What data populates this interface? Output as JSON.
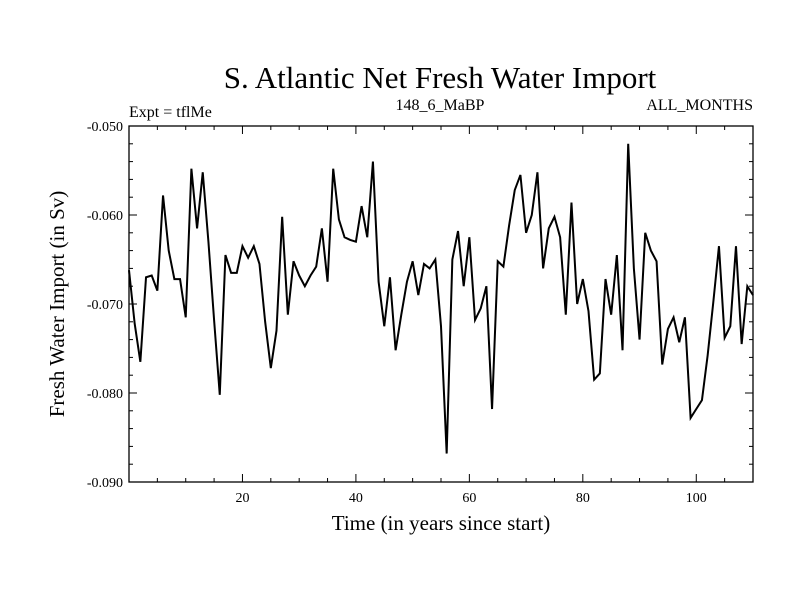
{
  "chart_data": {
    "type": "line",
    "title": "S. Atlantic Net Fresh Water Import",
    "subtitle_left": "Expt = tflMe",
    "subtitle_center": "148_6_MaBP",
    "subtitle_right": "ALL_MONTHS",
    "xlabel": "Time (in years since start)",
    "ylabel": "Fresh Water Import (in Sv)",
    "xlim": [
      0,
      110
    ],
    "ylim": [
      -0.09,
      -0.05
    ],
    "xticks": [
      20,
      40,
      60,
      80,
      100
    ],
    "xtick_labels": [
      "20",
      "40",
      "60",
      "80",
      "100"
    ],
    "yticks": [
      -0.09,
      -0.08,
      -0.07,
      -0.06,
      -0.05
    ],
    "ytick_labels": [
      "-0.090",
      "-0.080",
      "-0.070",
      "-0.060",
      "-0.050"
    ],
    "series": [
      {
        "name": "Net Fresh Water Import",
        "color": "#000000",
        "x": [
          0,
          1,
          2,
          3,
          4,
          5,
          6,
          7,
          8,
          9,
          10,
          11,
          12,
          13,
          14,
          15,
          16,
          17,
          18,
          19,
          20,
          21,
          22,
          23,
          24,
          25,
          26,
          27,
          28,
          29,
          30,
          31,
          32,
          33,
          34,
          35,
          36,
          37,
          38,
          39,
          40,
          41,
          42,
          43,
          44,
          45,
          46,
          47,
          48,
          49,
          50,
          51,
          52,
          53,
          54,
          55,
          56,
          57,
          58,
          59,
          60,
          61,
          62,
          63,
          64,
          65,
          66,
          67,
          68,
          69,
          70,
          71,
          72,
          73,
          74,
          75,
          76,
          77,
          78,
          79,
          80,
          81,
          82,
          83,
          84,
          85,
          86,
          87,
          88,
          89,
          90,
          91,
          92,
          93,
          94,
          95,
          96,
          97,
          98,
          99,
          100,
          101,
          102,
          103,
          104,
          105,
          106,
          107,
          108,
          109,
          110
        ],
        "values": [
          -0.0662,
          -0.0722,
          -0.0765,
          -0.067,
          -0.0668,
          -0.0685,
          -0.0578,
          -0.064,
          -0.0672,
          -0.0672,
          -0.0715,
          -0.0548,
          -0.0615,
          -0.0552,
          -0.063,
          -0.0718,
          -0.0802,
          -0.0645,
          -0.0665,
          -0.0665,
          -0.0635,
          -0.0648,
          -0.0635,
          -0.0655,
          -0.072,
          -0.0772,
          -0.073,
          -0.0602,
          -0.0712,
          -0.0652,
          -0.0668,
          -0.068,
          -0.0668,
          -0.0658,
          -0.0615,
          -0.0675,
          -0.0548,
          -0.0605,
          -0.0625,
          -0.0628,
          -0.063,
          -0.059,
          -0.0625,
          -0.054,
          -0.0675,
          -0.0725,
          -0.067,
          -0.0752,
          -0.0712,
          -0.0675,
          -0.0652,
          -0.069,
          -0.0655,
          -0.066,
          -0.065,
          -0.0725,
          -0.0868,
          -0.065,
          -0.0618,
          -0.068,
          -0.0625,
          -0.0718,
          -0.0705,
          -0.068,
          -0.0818,
          -0.0652,
          -0.0658,
          -0.0612,
          -0.0572,
          -0.0555,
          -0.062,
          -0.06,
          -0.0552,
          -0.066,
          -0.0615,
          -0.0602,
          -0.0625,
          -0.0712,
          -0.0586,
          -0.07,
          -0.0672,
          -0.0708,
          -0.0785,
          -0.0778,
          -0.0672,
          -0.0712,
          -0.0645,
          -0.0752,
          -0.052,
          -0.066,
          -0.074,
          -0.062,
          -0.064,
          -0.0652,
          -0.0768,
          -0.0728,
          -0.0715,
          -0.0743,
          -0.0715,
          -0.0828,
          -0.0818,
          -0.0808,
          -0.0758,
          -0.0698,
          -0.0635,
          -0.0738,
          -0.0725,
          -0.0635,
          -0.0745,
          -0.068,
          -0.069
        ]
      }
    ]
  }
}
